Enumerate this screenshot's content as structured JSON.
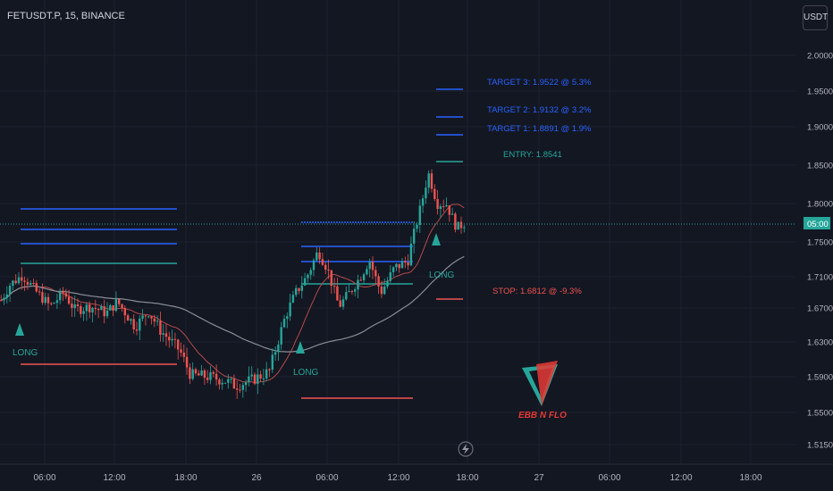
{
  "header": {
    "symbol": "FETUSDT.P, 15, BINANCE",
    "currency": "USDT"
  },
  "price_scale": {
    "current_label": "05:00"
  },
  "annotations": {
    "target3": "TARGET 3: 1.9522 @ 5.3%",
    "target2": "TARGET 2: 1.9132 @ 3.2%",
    "target1": "TARGET 1: 1.8891 @ 1.9%",
    "entry": "ENTRY: 1.8541",
    "stop": "STOP: 1.6812 @ -9.3%",
    "long1": "LONG",
    "long2": "LONG",
    "long3": "LONG"
  },
  "logo": {
    "text": "EBB N FLO"
  },
  "colors": {
    "background": "#131722",
    "up": "#26a69a",
    "down": "#ef5350",
    "target": "#2962ff",
    "entry": "#26a69a",
    "stop": "#ef5350"
  },
  "chart_data": {
    "type": "candlestick",
    "y_ticks": [
      "2.0000",
      "1.9500",
      "1.9000",
      "1.8500",
      "1.8000",
      "1.7500",
      "1.7100",
      "1.6700",
      "1.6300",
      "1.5900",
      "1.5500",
      "1.5150"
    ],
    "x_ticks": [
      "06:00",
      "12:00",
      "18:00",
      "26",
      "06:00",
      "12:00",
      "18:00",
      "27",
      "06:00",
      "12:00",
      "18:00"
    ],
    "ylim": [
      1.49,
      2.07
    ],
    "current_price": 1.778,
    "price_path": [
      [
        0,
        1.68
      ],
      [
        10,
        1.7
      ],
      [
        24,
        1.712
      ],
      [
        40,
        1.69
      ],
      [
        55,
        1.672
      ],
      [
        70,
        1.69
      ],
      [
        82,
        1.668
      ],
      [
        100,
        1.672
      ],
      [
        118,
        1.664
      ],
      [
        130,
        1.678
      ],
      [
        150,
        1.648
      ],
      [
        165,
        1.666
      ],
      [
        178,
        1.644
      ],
      [
        200,
        1.62
      ],
      [
        212,
        1.592
      ],
      [
        232,
        1.59
      ],
      [
        250,
        1.586
      ],
      [
        262,
        1.58
      ],
      [
        280,
        1.586
      ],
      [
        300,
        1.596
      ],
      [
        318,
        1.66
      ],
      [
        330,
        1.69
      ],
      [
        342,
        1.71
      ],
      [
        355,
        1.74
      ],
      [
        365,
        1.72
      ],
      [
        378,
        1.672
      ],
      [
        390,
        1.69
      ],
      [
        402,
        1.71
      ],
      [
        412,
        1.73
      ],
      [
        425,
        1.69
      ],
      [
        440,
        1.72
      ],
      [
        455,
        1.728
      ],
      [
        470,
        1.798
      ],
      [
        478,
        1.84
      ],
      [
        488,
        1.8
      ],
      [
        498,
        1.8
      ],
      [
        510,
        1.768
      ],
      [
        520,
        1.776
      ]
    ],
    "levels": [
      {
        "name": "target3",
        "value": 1.9522
      },
      {
        "name": "target2",
        "value": 1.9132
      },
      {
        "name": "target1",
        "value": 1.8891
      },
      {
        "name": "entry",
        "value": 1.8541
      },
      {
        "name": "stop",
        "value": 1.6812
      }
    ]
  }
}
